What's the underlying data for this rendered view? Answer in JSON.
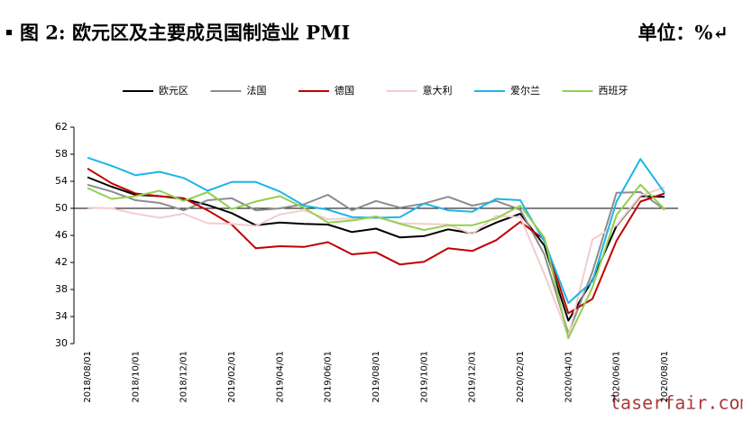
{
  "chart_data": {
    "type": "line",
    "title": "图 2: 欧元区及主要成员国制造业 PMI",
    "unit_label": "单位：%↵",
    "annotation": "laserfair.com",
    "categories": [
      "2018/08/01",
      null,
      "2018/10/01",
      null,
      "2018/12/01",
      null,
      "2019/02/01",
      null,
      "2019/04/01",
      null,
      "2019/06/01",
      null,
      "2019/08/01",
      null,
      "2019/10/01",
      null,
      "2019/12/01",
      null,
      "2020/02/01",
      null,
      "2020/04/01",
      null,
      "2020/06/01",
      null,
      "2020/08/01"
    ],
    "series": [
      {
        "name": "欧元区",
        "color": "#000000",
        "values": [
          54.6,
          53.2,
          52.0,
          51.8,
          51.4,
          50.5,
          49.3,
          47.5,
          47.9,
          47.7,
          47.6,
          46.5,
          47.0,
          45.7,
          45.9,
          46.9,
          46.3,
          47.9,
          49.2,
          44.5,
          33.4,
          39.4,
          47.4,
          51.8,
          51.7
        ]
      },
      {
        "name": "法国",
        "color": "#8c8c8c",
        "values": [
          53.5,
          52.5,
          51.2,
          50.8,
          49.7,
          51.2,
          51.5,
          49.7,
          50.0,
          50.6,
          52.0,
          49.7,
          51.1,
          50.1,
          50.7,
          51.7,
          50.4,
          51.1,
          49.8,
          43.2,
          31.5,
          40.6,
          52.3,
          52.4,
          49.8
        ]
      },
      {
        "name": "德国",
        "color": "#c00000",
        "values": [
          55.9,
          53.7,
          52.2,
          51.8,
          51.5,
          49.7,
          47.6,
          44.1,
          44.4,
          44.3,
          45.0,
          43.2,
          43.5,
          41.7,
          42.1,
          44.1,
          43.7,
          45.3,
          48.0,
          45.4,
          34.5,
          36.6,
          45.2,
          51.0,
          52.2
        ]
      },
      {
        "name": "意大利",
        "color": "#f4cccc",
        "values": [
          50.1,
          50.0,
          49.2,
          48.6,
          49.2,
          47.8,
          47.7,
          47.4,
          49.1,
          49.7,
          48.4,
          48.5,
          48.7,
          47.8,
          47.7,
          47.6,
          46.2,
          48.9,
          48.7,
          40.3,
          31.1,
          45.4,
          47.5,
          51.9,
          53.1
        ]
      },
      {
        "name": "爱尔兰",
        "color": "#1fb4e8",
        "values": [
          57.5,
          56.3,
          54.9,
          55.4,
          54.5,
          52.6,
          53.9,
          53.9,
          52.5,
          50.4,
          49.8,
          48.7,
          48.6,
          48.7,
          50.7,
          49.7,
          49.5,
          51.4,
          51.2,
          45.1,
          36.0,
          39.2,
          51.0,
          57.3,
          52.3
        ]
      },
      {
        "name": "西班牙",
        "color": "#92d050",
        "values": [
          53.0,
          51.4,
          51.8,
          52.6,
          51.1,
          52.4,
          49.9,
          51.0,
          51.8,
          50.1,
          47.9,
          48.2,
          48.8,
          47.7,
          46.8,
          47.5,
          47.5,
          48.5,
          50.4,
          45.7,
          30.8,
          38.3,
          49.0,
          53.5,
          49.9
        ]
      }
    ],
    "ylim": [
      30,
      62
    ],
    "yticks": [
      30,
      34,
      38,
      42,
      46,
      50,
      54,
      58,
      62
    ],
    "x_axis_crosses": 50,
    "legend": "top",
    "grid": false
  }
}
